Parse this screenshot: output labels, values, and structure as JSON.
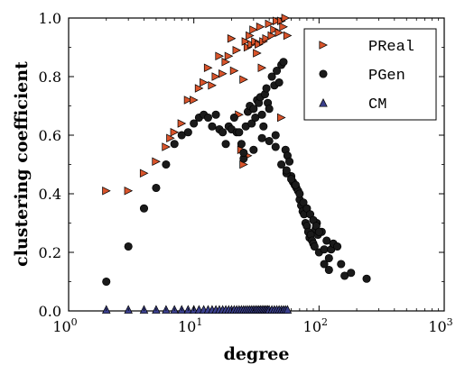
{
  "chart_data": {
    "type": "scatter",
    "xlabel": "degree",
    "ylabel": "clustering coefficient",
    "xscale": "log",
    "xlim": [
      1,
      1000
    ],
    "ylim": [
      0,
      1.0
    ],
    "x_ticks": [
      {
        "value": 1,
        "base": "10",
        "exp": "0"
      },
      {
        "value": 10,
        "base": "10",
        "exp": "1"
      },
      {
        "value": 100,
        "base": "10",
        "exp": "2"
      },
      {
        "value": 1000,
        "base": "10",
        "exp": "3"
      }
    ],
    "y_ticks": [
      "0.0",
      "0.2",
      "0.4",
      "0.6",
      "0.8",
      "1.0"
    ],
    "grid": false,
    "legend_position": "top-right",
    "series": [
      {
        "name": "PReal",
        "marker": "triangle-right",
        "color": "#d9542b",
        "edge_color": "#000000",
        "x": [
          2,
          3,
          4,
          5,
          6,
          6.5,
          7,
          8,
          9,
          10,
          11,
          12,
          13,
          14,
          15,
          16,
          17,
          18,
          19,
          20,
          21,
          22,
          23,
          24,
          25,
          26,
          27,
          28,
          29,
          30,
          31,
          32,
          33,
          34,
          35,
          36,
          38,
          40,
          42,
          44,
          46,
          48,
          50,
          52,
          54,
          56,
          25,
          27,
          50
        ],
        "y": [
          0.41,
          0.41,
          0.47,
          0.51,
          0.56,
          0.59,
          0.61,
          0.64,
          0.72,
          0.72,
          0.76,
          0.78,
          0.83,
          0.77,
          0.8,
          0.87,
          0.81,
          0.85,
          0.87,
          0.93,
          0.82,
          0.89,
          0.67,
          0.55,
          0.79,
          0.92,
          0.9,
          0.94,
          0.91,
          0.96,
          0.92,
          0.88,
          0.91,
          0.97,
          0.83,
          0.92,
          0.93,
          0.98,
          0.94,
          0.96,
          0.99,
          0.95,
          0.99,
          0.97,
          1.0,
          0.94,
          0.5,
          0.53,
          0.66
        ]
      },
      {
        "name": "PGen",
        "marker": "circle",
        "color": "#1a1a1a",
        "edge_color": "#000000",
        "x": [
          2,
          3,
          4,
          5,
          6,
          7,
          8,
          9,
          10,
          11,
          12,
          13,
          14,
          15,
          16,
          17,
          18,
          19,
          20,
          21,
          22,
          23,
          24,
          25,
          26,
          27,
          28,
          29,
          30,
          31,
          32,
          33,
          34,
          35,
          36,
          37,
          38,
          39,
          40,
          42,
          44,
          46,
          48,
          50,
          52,
          54,
          56,
          58,
          60,
          62,
          64,
          66,
          68,
          70,
          72,
          74,
          76,
          78,
          80,
          82,
          84,
          86,
          88,
          90,
          92,
          94,
          96,
          98,
          100,
          105,
          110,
          115,
          120,
          125,
          130,
          140,
          150,
          160,
          180,
          240,
          45,
          50,
          55,
          60,
          65,
          70,
          75,
          80,
          85,
          90,
          95,
          100,
          110,
          120,
          35,
          40,
          45,
          30,
          25,
          55
        ],
        "y": [
          0.1,
          0.22,
          0.35,
          0.42,
          0.5,
          0.57,
          0.6,
          0.61,
          0.64,
          0.66,
          0.67,
          0.66,
          0.63,
          0.67,
          0.62,
          0.61,
          0.57,
          0.63,
          0.62,
          0.66,
          0.61,
          0.61,
          0.57,
          0.52,
          0.63,
          0.68,
          0.7,
          0.64,
          0.69,
          0.66,
          0.72,
          0.71,
          0.73,
          0.67,
          0.63,
          0.74,
          0.76,
          0.71,
          0.69,
          0.8,
          0.77,
          0.82,
          0.78,
          0.84,
          0.85,
          0.55,
          0.53,
          0.51,
          0.46,
          0.44,
          0.43,
          0.42,
          0.41,
          0.38,
          0.36,
          0.34,
          0.33,
          0.3,
          0.29,
          0.27,
          0.25,
          0.26,
          0.24,
          0.23,
          0.22,
          0.28,
          0.3,
          0.26,
          0.2,
          0.27,
          0.21,
          0.24,
          0.18,
          0.21,
          0.23,
          0.22,
          0.16,
          0.12,
          0.13,
          0.11,
          0.6,
          0.5,
          0.47,
          0.45,
          0.43,
          0.4,
          0.37,
          0.35,
          0.33,
          0.31,
          0.29,
          0.27,
          0.16,
          0.14,
          0.59,
          0.58,
          0.56,
          0.55,
          0.54,
          0.48
        ]
      },
      {
        "name": "CM",
        "marker": "triangle-up",
        "color": "#3a3f8c",
        "edge_color": "#000000",
        "x": [
          2,
          3,
          4,
          5,
          6,
          7,
          8,
          9,
          10,
          11,
          12,
          13,
          14,
          15,
          16,
          17,
          18,
          19,
          20,
          21,
          22,
          23,
          24,
          25,
          26,
          27,
          28,
          29,
          30,
          31,
          32,
          33,
          34,
          35,
          36,
          37,
          38,
          39,
          40,
          42,
          44,
          46,
          48,
          50,
          52,
          54,
          56
        ],
        "y": [
          0.005,
          0.005,
          0.005,
          0.005,
          0.005,
          0.005,
          0.005,
          0.005,
          0.005,
          0.005,
          0.005,
          0.005,
          0.005,
          0.005,
          0.005,
          0.005,
          0.005,
          0.005,
          0.005,
          0.005,
          0.005,
          0.005,
          0.005,
          0.005,
          0.005,
          0.005,
          0.005,
          0.005,
          0.005,
          0.005,
          0.005,
          0.005,
          0.005,
          0.005,
          0.005,
          0.005,
          0.005,
          0.005,
          0.005,
          0.005,
          0.005,
          0.005,
          0.005,
          0.005,
          0.005,
          0.005,
          0.005
        ]
      }
    ]
  }
}
